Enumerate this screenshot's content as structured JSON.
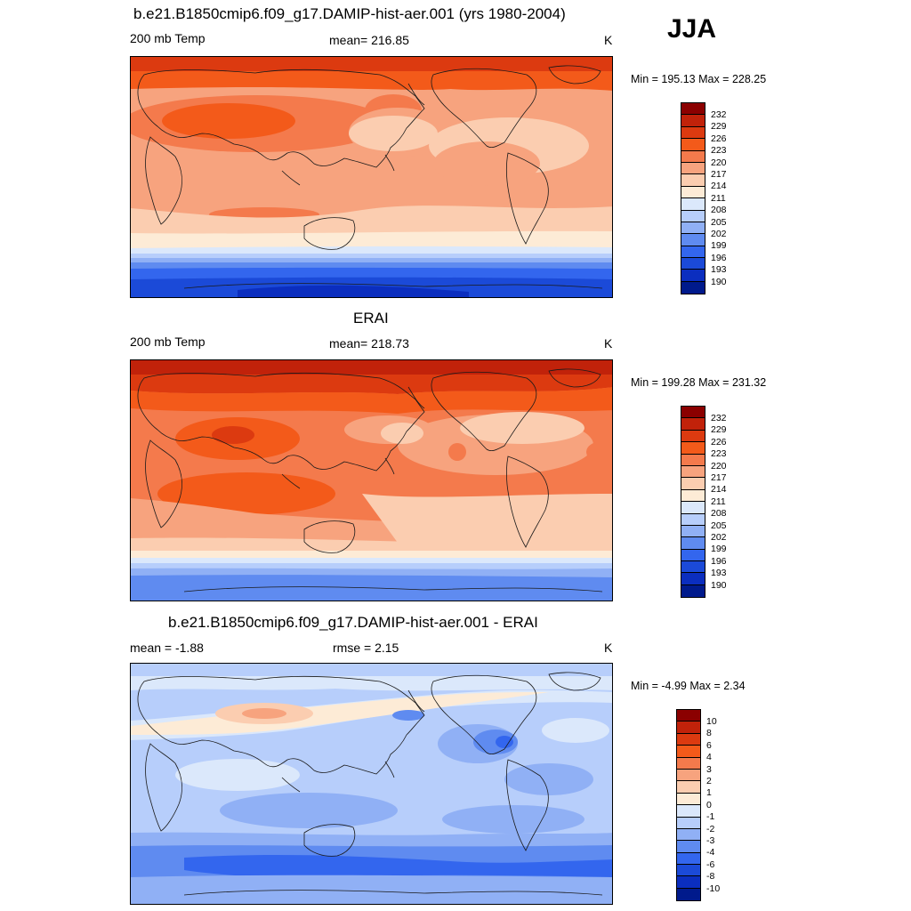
{
  "season": "JJA",
  "panels": [
    {
      "title": "b.e21.B1850cmip6.f09_g17.DAMIP-hist-aer.001 (yrs 1980-2004)",
      "left_label": "200 mb Temp",
      "center_label": "mean= 216.85",
      "units": "K",
      "minmax": "Min = 195.13 Max = 228.25",
      "colorbar": {
        "levels": [
          "232",
          "229",
          "226",
          "223",
          "220",
          "217",
          "214",
          "211",
          "208",
          "205",
          "202",
          "199",
          "196",
          "193",
          "190"
        ],
        "colors": [
          "#8b0000",
          "#c1220a",
          "#dc3a10",
          "#f35a1a",
          "#f47a4c",
          "#f7a37e",
          "#fbcdb0",
          "#fdebd6",
          "#dbe8fb",
          "#b7cefb",
          "#90b0f5",
          "#5f8bf0",
          "#3366ee",
          "#1b4ad8",
          "#0b2ebf",
          "#001a8c"
        ]
      }
    },
    {
      "title": "ERAI",
      "left_label": "200 mb Temp",
      "center_label": "mean= 218.73",
      "units": "K",
      "minmax": "Min = 199.28 Max = 231.32",
      "colorbar": {
        "levels": [
          "232",
          "229",
          "226",
          "223",
          "220",
          "217",
          "214",
          "211",
          "208",
          "205",
          "202",
          "199",
          "196",
          "193",
          "190"
        ],
        "colors": [
          "#8b0000",
          "#c1220a",
          "#dc3a10",
          "#f35a1a",
          "#f47a4c",
          "#f7a37e",
          "#fbcdb0",
          "#fdebd6",
          "#dbe8fb",
          "#b7cefb",
          "#90b0f5",
          "#5f8bf0",
          "#3366ee",
          "#1b4ad8",
          "#0b2ebf",
          "#001a8c"
        ]
      }
    },
    {
      "title": "b.e21.B1850cmip6.f09_g17.DAMIP-hist-aer.001 - ERAI",
      "left_label": "mean =  -1.88",
      "center_label": "rmse =   2.15",
      "units": "K",
      "minmax": "Min =  -4.99 Max =   2.34",
      "colorbar": {
        "levels": [
          "10",
          "8",
          "6",
          "4",
          "3",
          "2",
          "1",
          "0",
          "-1",
          "-2",
          "-3",
          "-4",
          "-6",
          "-8",
          "-10"
        ],
        "colors": [
          "#8b0000",
          "#c1220a",
          "#dc3a10",
          "#f35a1a",
          "#f47a4c",
          "#f7a37e",
          "#fbcdb0",
          "#fdebd6",
          "#dbe8fb",
          "#b7cefb",
          "#90b0f5",
          "#5f8bf0",
          "#3366ee",
          "#1b4ad8",
          "#0b2ebf",
          "#001a8c"
        ]
      }
    }
  ]
}
